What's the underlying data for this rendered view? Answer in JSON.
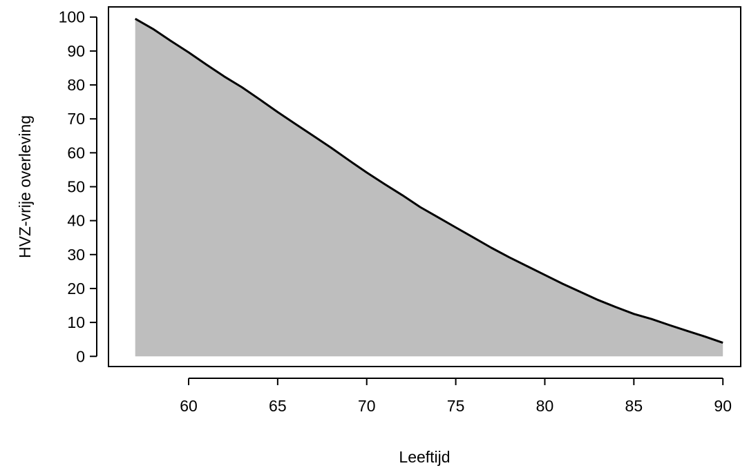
{
  "chart_data": {
    "type": "area",
    "title": "",
    "xlabel": "Leeftijd",
    "ylabel": "HVZ-vrije overleving",
    "xlim": [
      55.5,
      91
    ],
    "ylim": [
      -3,
      103
    ],
    "xticks": [
      60,
      65,
      70,
      75,
      80,
      85,
      90
    ],
    "yticks": [
      0,
      10,
      20,
      30,
      40,
      50,
      60,
      70,
      80,
      90,
      100
    ],
    "grid": false,
    "legend": "none",
    "fill_color": "#bebebe",
    "line_color": "#000000",
    "series": [
      {
        "x": [
          57,
          58,
          59,
          60,
          61,
          62,
          63,
          64,
          65,
          66,
          67,
          68,
          69,
          70,
          71,
          72,
          73,
          74,
          75,
          76,
          77,
          78,
          79,
          80,
          81,
          82,
          83,
          84,
          85,
          86,
          87,
          88,
          89,
          90
        ],
        "y": [
          99.5,
          96.5,
          93,
          89.6,
          86,
          82.5,
          79.3,
          75.7,
          72,
          68.5,
          65,
          61.5,
          57.8,
          54.2,
          50.8,
          47.5,
          44,
          41,
          38,
          35,
          32,
          29.2,
          26.6,
          24,
          21.4,
          19,
          16.6,
          14.5,
          12.5,
          11,
          9.2,
          7.5,
          5.8,
          4
        ]
      }
    ]
  }
}
